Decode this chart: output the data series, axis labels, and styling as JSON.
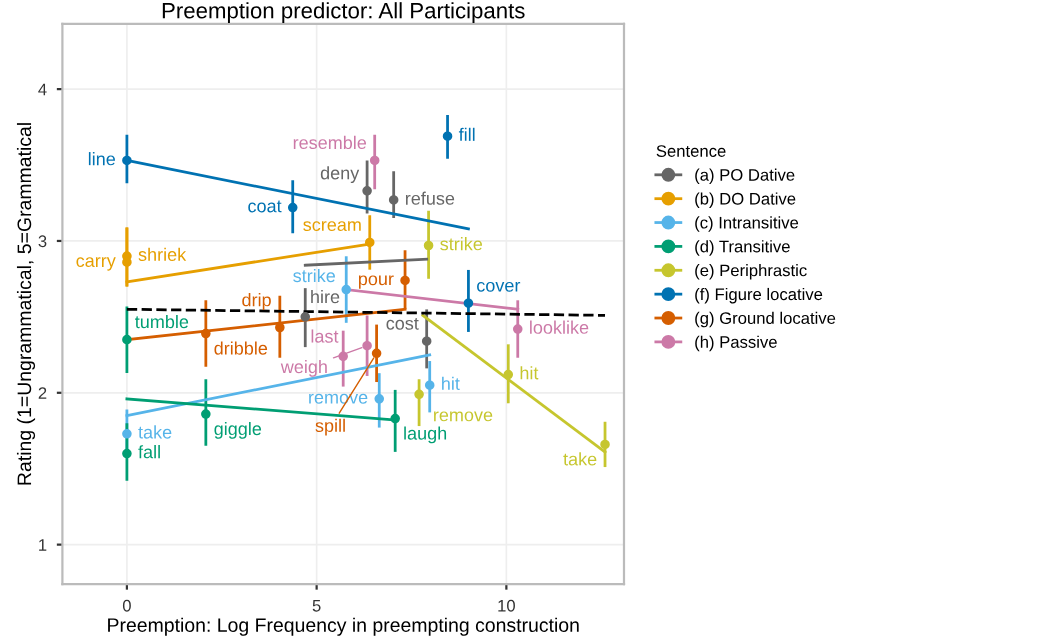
{
  "chart_data": {
    "type": "scatter",
    "title": "Preemption predictor: All Participants",
    "xlabel": "Preemption: Log Frequency in preempting construction",
    "ylabel": "Rating (1=Ungrammatical, 5=Grammatical",
    "legend_title": "Sentence",
    "legend": "right",
    "grid": true,
    "xlim": [
      -1.7,
      13.1
    ],
    "ylim": [
      0.74,
      4.43
    ],
    "xticks": [
      0,
      5,
      10
    ],
    "yticks": [
      1,
      2,
      3,
      4
    ],
    "series": [
      {
        "name": "(a) PO Dative",
        "color": "#666666",
        "marker": "circle",
        "x": [
          6.33,
          7.03,
          4.7,
          7.9
        ],
        "values": [
          3.33,
          3.27,
          2.5,
          2.34
        ],
        "errors": [
          [
            3.19,
            3.52
          ],
          [
            3.16,
            3.45
          ],
          [
            2.31,
            2.68
          ],
          [
            2.17,
            2.54
          ]
        ]
      },
      {
        "name": "(b) DO Dative",
        "color": "#e69f00",
        "marker": "circle",
        "x": [
          0,
          0,
          6.4
        ],
        "values": [
          2.9,
          2.86,
          2.99
        ],
        "errors": [
          [
            2.71,
            3.08
          ],
          [
            2.71,
            3.08
          ],
          [
            2.82,
            3.16
          ]
        ]
      },
      {
        "name": "(c) Intransitive",
        "color": "#56b4e9",
        "marker": "circle",
        "x": [
          5.78,
          7.98,
          6.65,
          0
        ],
        "values": [
          2.68,
          2.05,
          1.96,
          1.73
        ],
        "errors": [
          [
            2.47,
            2.89
          ],
          [
            1.88,
            2.2
          ],
          [
            1.78,
            2.12
          ],
          [
            1.58,
            1.88
          ]
        ]
      },
      {
        "name": "(d) Transitive",
        "color": "#009e73",
        "marker": "circle",
        "x": [
          0,
          2.08,
          7.07,
          0
        ],
        "values": [
          2.35,
          1.86,
          1.83,
          1.6
        ],
        "errors": [
          [
            2.14,
            2.56
          ],
          [
            1.66,
            2.08
          ],
          [
            1.62,
            2.01
          ],
          [
            1.43,
            1.79
          ]
        ]
      },
      {
        "name": "(e) Periphrastic",
        "color": "#c6c62e",
        "marker": "circle",
        "x": [
          7.95,
          10.05,
          12.6,
          7.7
        ],
        "values": [
          2.97,
          2.12,
          1.66,
          1.99
        ],
        "errors": [
          [
            2.76,
            3.19
          ],
          [
            1.94,
            2.31
          ],
          [
            1.52,
            1.8
          ],
          [
            1.79,
            2.08
          ]
        ]
      },
      {
        "name": "(f) Figure locative",
        "color": "#0072b2",
        "marker": "circle",
        "x": [
          0,
          4.37,
          8.45,
          9.0
        ],
        "values": [
          3.53,
          3.22,
          3.69,
          2.59
        ],
        "errors": [
          [
            3.39,
            3.69
          ],
          [
            3.06,
            3.39
          ],
          [
            3.55,
            3.82
          ],
          [
            2.41,
            2.8
          ]
        ]
      },
      {
        "name": "(g) Ground locative",
        "color": "#d55e00",
        "marker": "circle",
        "x": [
          2.08,
          4.03,
          7.33,
          6.58
        ],
        "values": [
          2.39,
          2.43,
          2.74,
          2.26
        ],
        "errors": [
          [
            2.18,
            2.6
          ],
          [
            2.24,
            2.63
          ],
          [
            2.56,
            2.93
          ],
          [
            2.08,
            2.44
          ]
        ]
      },
      {
        "name": "(h) Passive",
        "color": "#cc79a7",
        "marker": "circle",
        "x": [
          6.53,
          6.33,
          10.3,
          5.7
        ],
        "values": [
          3.53,
          2.31,
          2.42,
          2.24
        ],
        "errors": [
          [
            3.35,
            3.69
          ],
          [
            2.12,
            2.5
          ],
          [
            2.24,
            2.6
          ],
          [
            2.05,
            2.4
          ]
        ]
      },
      {
        "type": "line",
        "color": "#666666",
        "x": [
          4.7,
          7.9
        ],
        "values": [
          2.84,
          2.88
        ]
      },
      {
        "type": "line",
        "color": "#e69f00",
        "x": [
          0,
          6.4
        ],
        "values": [
          2.73,
          2.98
        ]
      },
      {
        "type": "line",
        "color": "#56b4e9",
        "x": [
          0,
          7.98
        ],
        "values": [
          1.85,
          2.25
        ]
      },
      {
        "type": "line",
        "color": "#009e73",
        "x": [
          0,
          7.07
        ],
        "values": [
          1.96,
          1.82
        ]
      },
      {
        "type": "line",
        "color": "#c6c62e",
        "x": [
          7.8,
          12.6
        ],
        "values": [
          2.51,
          1.61
        ]
      },
      {
        "type": "line",
        "color": "#0072b2",
        "x": [
          0,
          9.0
        ],
        "values": [
          3.53,
          3.08
        ]
      },
      {
        "type": "line",
        "color": "#d55e00",
        "x": [
          0,
          7.33
        ],
        "values": [
          2.35,
          2.55
        ]
      },
      {
        "type": "line",
        "color": "#cc79a7",
        "x": [
          5.78,
          10.3
        ],
        "values": [
          2.68,
          2.55
        ]
      },
      {
        "type": "line",
        "color": "#000000",
        "line_style": "dashed",
        "x": [
          0,
          12.6
        ],
        "values": [
          2.55,
          2.51
        ]
      }
    ],
    "annotations": [
      {
        "text": "deny",
        "x": 6.33,
        "y": 3.33
      },
      {
        "text": "refuse",
        "x": 7.03,
        "y": 3.27
      },
      {
        "text": "hire",
        "x": 4.7,
        "y": 2.5
      },
      {
        "text": "cost",
        "x": 7.9,
        "y": 2.34
      },
      {
        "text": "shriek",
        "x": 0,
        "y": 2.9
      },
      {
        "text": "carry",
        "x": 0,
        "y": 2.86
      },
      {
        "text": "scream",
        "x": 6.4,
        "y": 2.99
      },
      {
        "text": "strike",
        "x": 5.78,
        "y": 2.68
      },
      {
        "text": "hit",
        "x": 7.98,
        "y": 2.05
      },
      {
        "text": "remove",
        "x": 6.65,
        "y": 1.96
      },
      {
        "text": "take",
        "x": 0,
        "y": 1.73
      },
      {
        "text": "tumble",
        "x": 0,
        "y": 2.35
      },
      {
        "text": "giggle",
        "x": 2.08,
        "y": 1.86
      },
      {
        "text": "laugh",
        "x": 7.07,
        "y": 1.83
      },
      {
        "text": "fall",
        "x": 0,
        "y": 1.6
      },
      {
        "text": "strike",
        "x": 7.95,
        "y": 2.97
      },
      {
        "text": "hit",
        "x": 10.05,
        "y": 2.12
      },
      {
        "text": "take",
        "x": 12.6,
        "y": 1.66
      },
      {
        "text": "remove",
        "x": 7.7,
        "y": 1.99
      },
      {
        "text": "line",
        "x": 0,
        "y": 3.53
      },
      {
        "text": "coat",
        "x": 4.37,
        "y": 3.22
      },
      {
        "text": "fill",
        "x": 8.45,
        "y": 3.69
      },
      {
        "text": "cover",
        "x": 9.0,
        "y": 2.59
      },
      {
        "text": "dribble",
        "x": 2.08,
        "y": 2.39
      },
      {
        "text": "drip",
        "x": 4.03,
        "y": 2.43
      },
      {
        "text": "pour",
        "x": 7.33,
        "y": 2.74
      },
      {
        "text": "spill",
        "x": 6.58,
        "y": 2.26
      },
      {
        "text": "resemble",
        "x": 6.53,
        "y": 3.53
      },
      {
        "text": "weigh",
        "x": 6.33,
        "y": 2.31
      },
      {
        "text": "looklike",
        "x": 10.3,
        "y": 2.42
      },
      {
        "text": "last",
        "x": 5.7,
        "y": 2.24
      }
    ]
  }
}
